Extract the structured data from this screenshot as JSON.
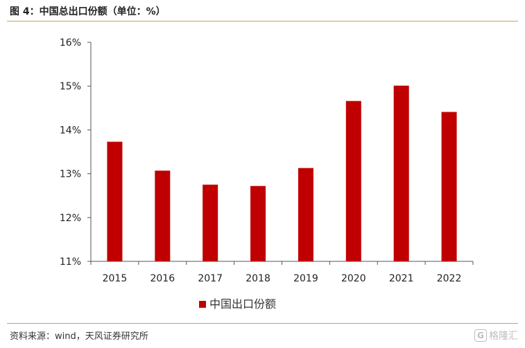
{
  "figure": {
    "title": "图 4：中国总出口份额（单位：%）",
    "source": "资料来源：wind，天风证券研究所",
    "watermark": "格隆汇"
  },
  "chart_data": {
    "type": "bar",
    "categories": [
      "2015",
      "2016",
      "2017",
      "2018",
      "2019",
      "2020",
      "2021",
      "2022"
    ],
    "series": [
      {
        "name": "中国出口份额",
        "values": [
          13.73,
          13.07,
          12.75,
          12.72,
          13.13,
          14.66,
          15.01,
          14.41
        ],
        "color": "#c00000"
      }
    ],
    "ylim": [
      11,
      16
    ],
    "yticks": [
      11,
      12,
      13,
      14,
      15,
      16
    ],
    "ytick_labels": [
      "11%",
      "12%",
      "13%",
      "14%",
      "15%",
      "16%"
    ],
    "xlabel": "",
    "ylabel": "",
    "grid": false,
    "legend_position": "bottom-center"
  }
}
